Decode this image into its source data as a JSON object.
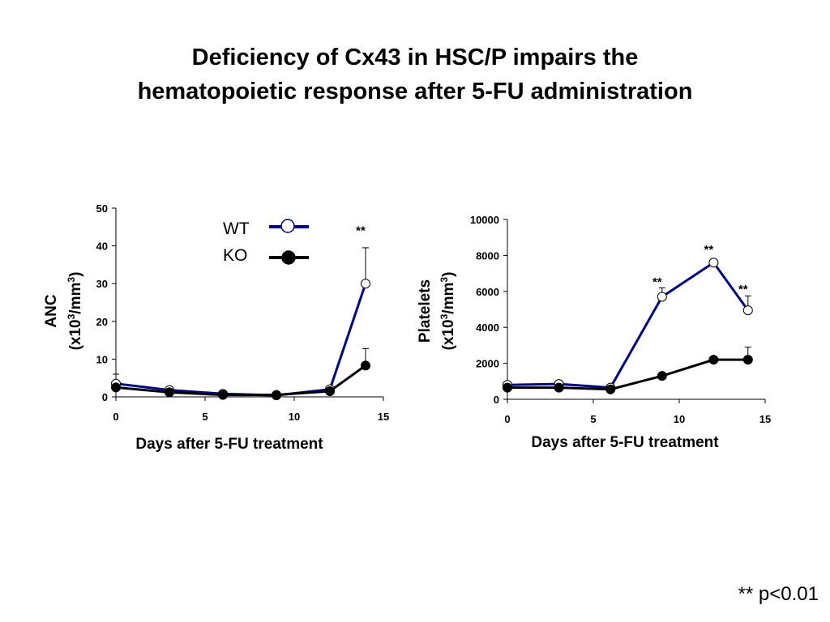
{
  "title": {
    "line1": "Deficiency of Cx43 in HSC/P impairs the",
    "line2": "hematopoietic response after 5-FU administration"
  },
  "legend": {
    "wt": "WT",
    "ko": "KO"
  },
  "footnote": {
    "stars": "**",
    "text": "p<0.01"
  },
  "colors": {
    "wt": "#000080",
    "ko": "#000000"
  },
  "chart_data": [
    {
      "type": "line",
      "xlabel": "Days after 5-FU treatment",
      "ylabel_line1": "ANC",
      "ylabel_line2_pre": "(x10",
      "ylabel_sup1": "3",
      "ylabel_mid": "/mm",
      "ylabel_sup2": "3",
      "ylabel_post": ")",
      "xlim": [
        0,
        15
      ],
      "ylim": [
        0,
        50
      ],
      "xticks": [
        "0",
        "5",
        "10",
        "15"
      ],
      "xtick_values": [
        0,
        5,
        10,
        15
      ],
      "yticks": [
        "0",
        "10",
        "20",
        "30",
        "40",
        "50"
      ],
      "ytick_values": [
        0,
        10,
        20,
        30,
        40,
        50
      ],
      "series": [
        {
          "name": "WT",
          "x": [
            0,
            3,
            6,
            9,
            12,
            14
          ],
          "y": [
            3.5,
            1.8,
            0.8,
            0.4,
            2.0,
            30.0
          ],
          "err": [
            2.5,
            0.6,
            0.3,
            0.2,
            0.6,
            9.5
          ]
        },
        {
          "name": "KO",
          "x": [
            0,
            3,
            6,
            9,
            12,
            14
          ],
          "y": [
            2.5,
            1.2,
            0.5,
            0.5,
            1.5,
            8.3
          ],
          "err": [
            0.8,
            0.3,
            0.2,
            0.2,
            0.5,
            4.5
          ]
        }
      ],
      "annotations": [
        {
          "text": "**",
          "x": 14,
          "y": 43
        }
      ]
    },
    {
      "type": "line",
      "xlabel": "Days after 5-FU treatment",
      "ylabel_line1": "Platelets",
      "ylabel_line2_pre": "(x10",
      "ylabel_sup1": "3",
      "ylabel_mid": "/mm",
      "ylabel_sup2": "3",
      "ylabel_post": ")",
      "xlim": [
        0,
        15
      ],
      "ylim": [
        0,
        10000
      ],
      "xticks": [
        "0",
        "5",
        "10",
        "15"
      ],
      "xtick_values": [
        0,
        5,
        10,
        15
      ],
      "yticks": [
        "0",
        "2000",
        "4000",
        "6000",
        "8000",
        "10000"
      ],
      "ytick_values": [
        0,
        2000,
        4000,
        6000,
        8000,
        10000
      ],
      "series": [
        {
          "name": "WT",
          "x": [
            0,
            3,
            6,
            9,
            12,
            14
          ],
          "y": [
            800,
            850,
            650,
            5700,
            7600,
            4950
          ],
          "err": [
            100,
            100,
            80,
            500,
            200,
            800
          ]
        },
        {
          "name": "KO",
          "x": [
            0,
            3,
            6,
            9,
            12,
            14
          ],
          "y": [
            650,
            650,
            550,
            1300,
            2200,
            2200
          ],
          "err": [
            80,
            80,
            60,
            150,
            150,
            700
          ]
        }
      ],
      "annotations": [
        {
          "text": "**",
          "x": 9,
          "y": 6300
        },
        {
          "text": "**",
          "x": 12,
          "y": 8100
        },
        {
          "text": "**",
          "x": 14,
          "y": 5900
        }
      ]
    }
  ]
}
